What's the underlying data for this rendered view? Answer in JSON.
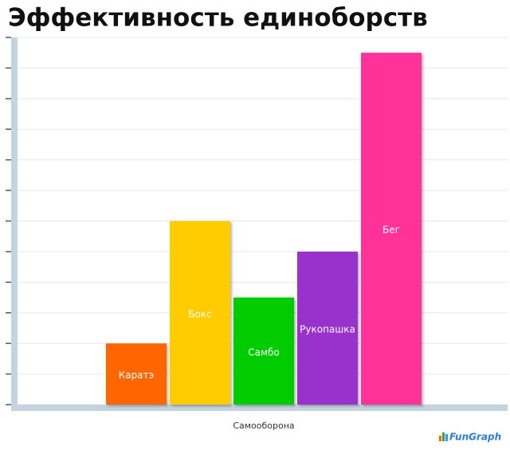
{
  "chart_data": {
    "type": "bar",
    "title": "Эффективность единоборств",
    "x_label": "Самооборона",
    "categories": [
      "Каратэ",
      "Бокс",
      "Самбо",
      "Рукопашка",
      "Бег"
    ],
    "values": [
      2,
      6,
      3.5,
      5,
      11.5
    ],
    "colors": [
      "#ff6600",
      "#ffcc00",
      "#00cc00",
      "#9933cc",
      "#ff3399"
    ],
    "ylim": [
      0,
      12
    ],
    "yticks": [
      0,
      1,
      2,
      3,
      4,
      5,
      6,
      7,
      8,
      9,
      10,
      11,
      12
    ],
    "grid": true,
    "watermark": "FunGraph"
  }
}
